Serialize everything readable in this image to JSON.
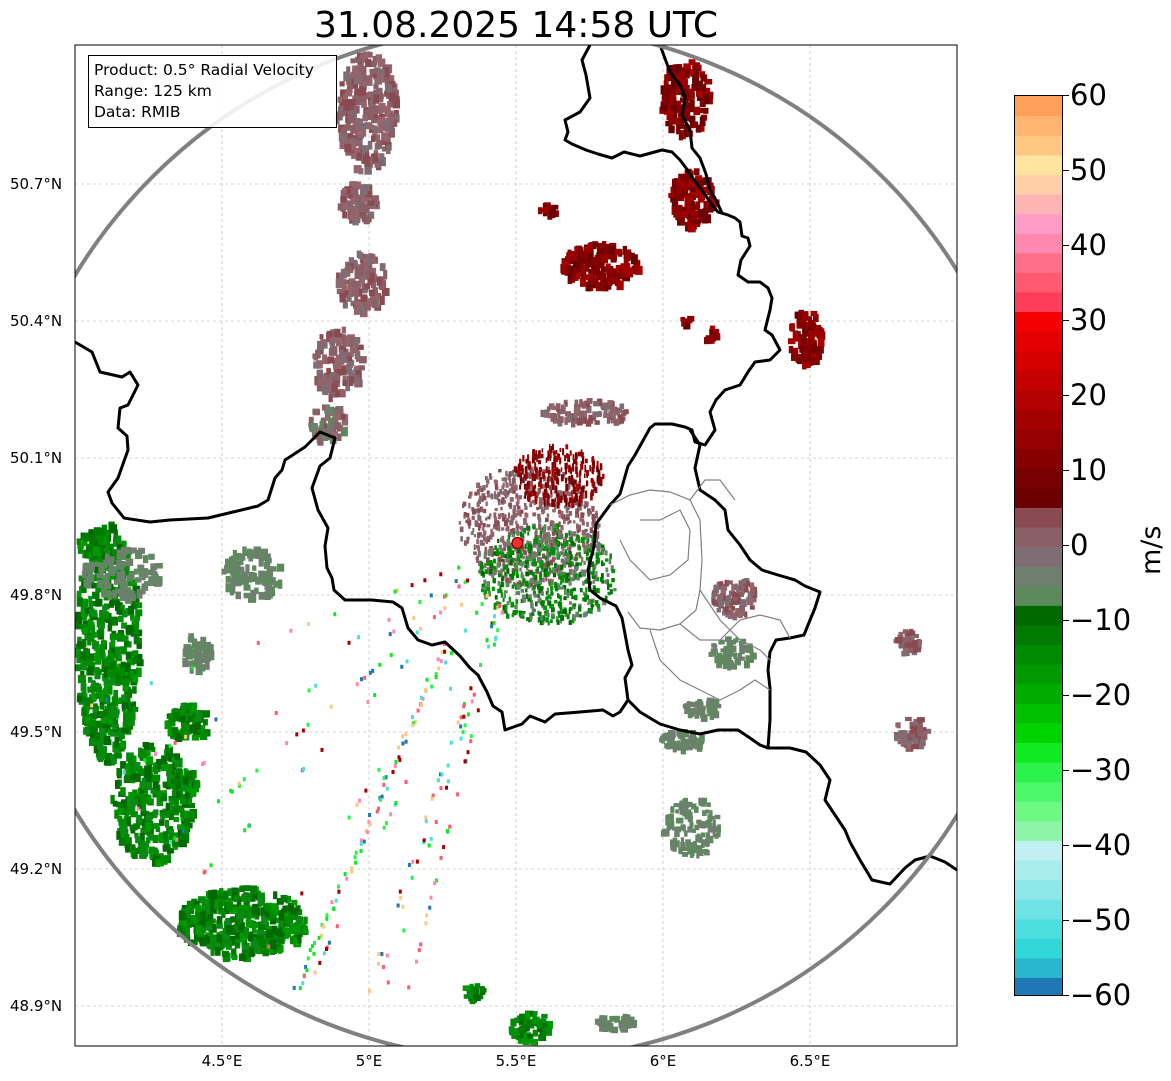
{
  "title": "31.08.2025 14:58 UTC",
  "info_box": {
    "product": "Product: 0.5° Radial Velocity",
    "range": "Range: 125 km",
    "source": "Data: RMIB"
  },
  "map": {
    "type": "radar radial velocity map",
    "radar_site": {
      "lon": 5.505,
      "lat": 49.914
    },
    "x_ticks": [
      "4.5°E",
      "5°E",
      "5.5°E",
      "6°E",
      "6.5°E"
    ],
    "x_tick_values": [
      4.5,
      5.0,
      5.5,
      6.0,
      6.5
    ],
    "y_ticks": [
      "50.7°N",
      "50.4°N",
      "50.1°N",
      "49.8°N",
      "49.5°N",
      "49.2°N",
      "48.9°N"
    ],
    "y_tick_values": [
      50.7,
      50.4,
      50.1,
      49.8,
      49.5,
      49.2,
      48.9
    ],
    "lon_range": [
      4.0,
      7.0
    ],
    "lat_range": [
      48.8,
      51.0
    ],
    "grid": true,
    "range_ring_color": "#808080",
    "border_color": "#000000",
    "site_marker_color": "#ff2a2a"
  },
  "colorbar": {
    "label": "m/s",
    "ticks": [
      "60",
      "50",
      "40",
      "30",
      "20",
      "10",
      "0",
      "−10",
      "−20",
      "−30",
      "−40",
      "−50",
      "−60"
    ],
    "tick_values": [
      60,
      50,
      40,
      30,
      20,
      10,
      0,
      -10,
      -20,
      -30,
      -40,
      -50,
      -60
    ],
    "range": [
      -60,
      60
    ],
    "colors": [
      "#1f77b4",
      "#29b6cf",
      "#32d8d8",
      "#4ddfe0",
      "#6fe4e6",
      "#8ee8ea",
      "#a9ecee",
      "#c2f0f2",
      "#8ef4a8",
      "#6ef884",
      "#4cf86a",
      "#2cf24c",
      "#10ea20",
      "#00d400",
      "#00c000",
      "#00ac00",
      "#009a00",
      "#008a00",
      "#007a00",
      "#006a00",
      "#5d8a5d",
      "#6f7e6e",
      "#7e6e73",
      "#8a5f66",
      "#8a4a52",
      "#6a0000",
      "#780000",
      "#860000",
      "#950000",
      "#a40000",
      "#b40000",
      "#c40000",
      "#d40000",
      "#e40000",
      "#f40000",
      "#ff3c5a",
      "#ff5a70",
      "#ff7088",
      "#ff88b0",
      "#ff9cc8",
      "#ffb4b4",
      "#ffd0a8",
      "#ffe4a0",
      "#ffc882",
      "#ffb470",
      "#ffa05a"
    ]
  }
}
